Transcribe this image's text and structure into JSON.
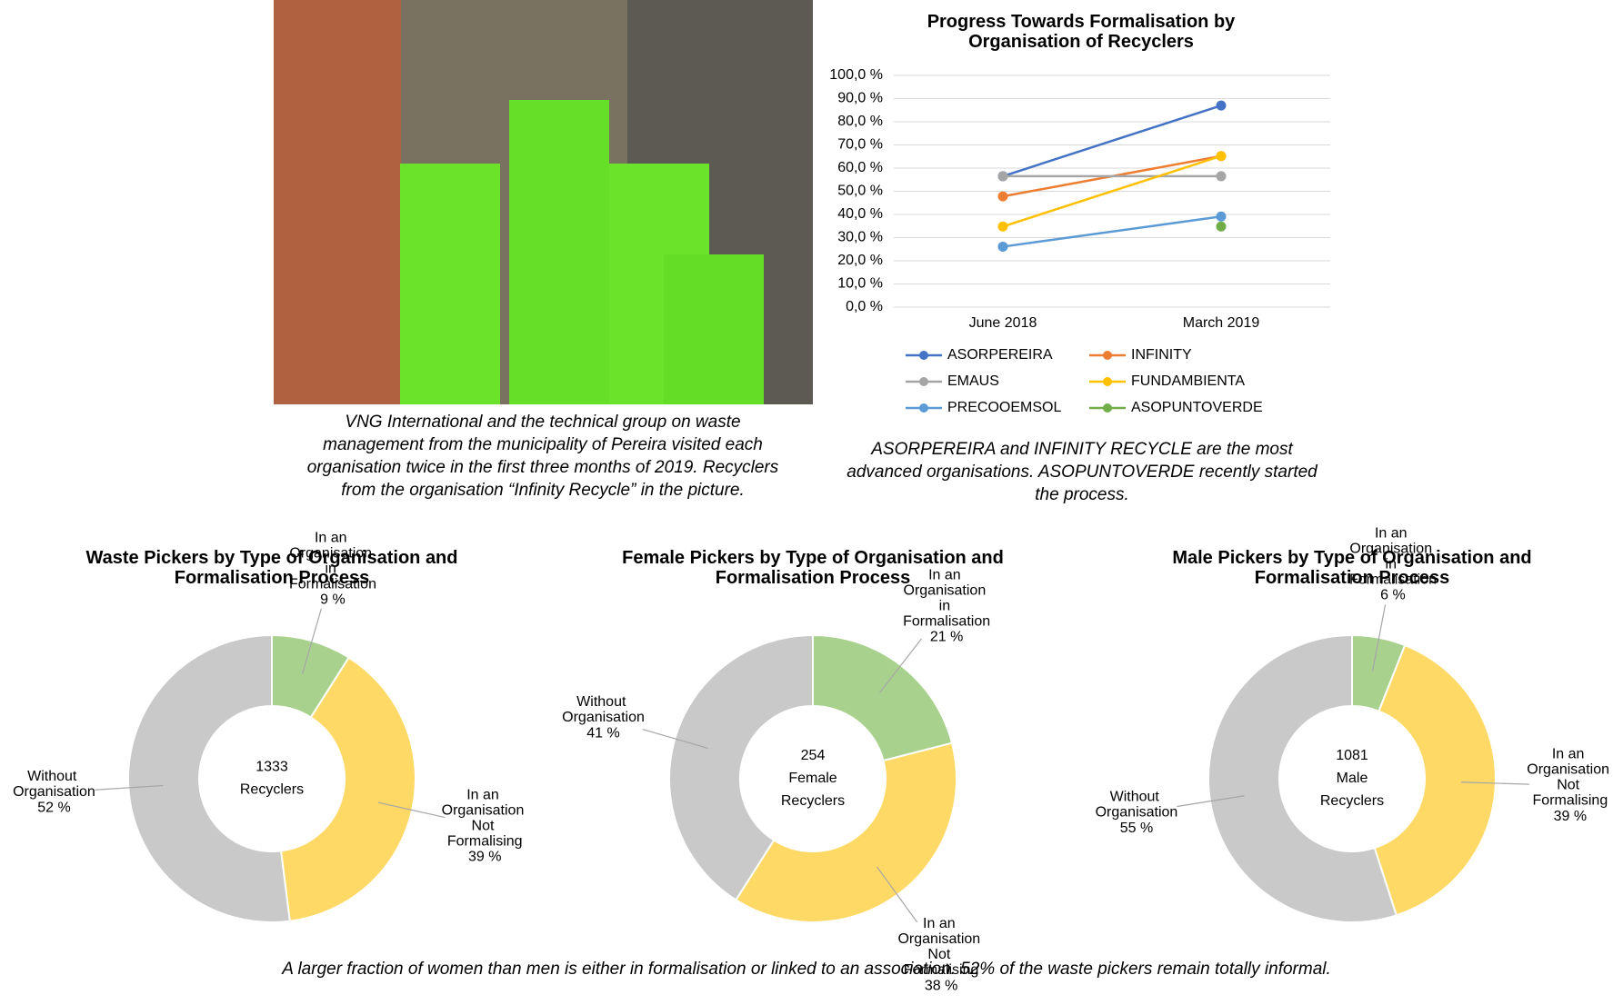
{
  "photo_caption": "VNG International and the technical group on waste management from the municipality of Pereira visited each organisation twice in the first three months of 2019. Recyclers from the organisation “Infinity Recycle” in the picture.",
  "line_caption": "ASORPEREIRA and INFINITY RECYCLE are the most advanced organisations. ASOPUNTOVERDE recently started the process.",
  "footer_caption": "A larger fraction of women than men is either in formalisation or linked to an association. 52% of the waste pickers remain totally informal.",
  "chart_data": [
    {
      "type": "line",
      "title": "Progress Towards Formalisation by Organisation of Recyclers",
      "categories": [
        "June 2018",
        "March 2019"
      ],
      "ylim": [
        0,
        100
      ],
      "yticks": [
        {
          "value": 0,
          "label": "0,0 %"
        },
        {
          "value": 10,
          "label": "10,0 %"
        },
        {
          "value": 20,
          "label": "20,0 %"
        },
        {
          "value": 30,
          "label": "30,0 %"
        },
        {
          "value": 40,
          "label": "40,0 %"
        },
        {
          "value": 50,
          "label": "50,0 %"
        },
        {
          "value": 60,
          "label": "60,0 %"
        },
        {
          "value": 70,
          "label": "70,0 %"
        },
        {
          "value": 80,
          "label": "80,0 %"
        },
        {
          "value": 90,
          "label": "90,0 %"
        },
        {
          "value": 100,
          "label": "100,0 %"
        }
      ],
      "grid": true,
      "series": [
        {
          "name": "ASORPEREIRA",
          "color": "#4472c4",
          "values": [
            56.5,
            87
          ]
        },
        {
          "name": "INFINITY",
          "color": "#ed7d31",
          "values": [
            47.8,
            65.2
          ]
        },
        {
          "name": "EMAUS",
          "color": "#a5a5a5",
          "values": [
            56.5,
            56.5
          ]
        },
        {
          "name": "FUNDAMBIENTA",
          "color": "#ffc000",
          "values": [
            34.8,
            65.2
          ]
        },
        {
          "name": "PRECOOEMSOL",
          "color": "#5b9bd5",
          "values": [
            26.1,
            39.1
          ]
        },
        {
          "name": "ASOPUNTOVERDE",
          "color": "#70ad47",
          "values": [
            null,
            34.8
          ]
        }
      ]
    },
    {
      "type": "donut",
      "title": "Waste Pickers by Type of Organisation and Formalisation Process",
      "center_label": [
        "1333",
        "Recyclers"
      ],
      "categories": [
        "In an Organisation in Formalisation",
        "In an Organisation Not Formalising",
        "Without Organisation"
      ],
      "values": [
        9,
        39,
        52
      ],
      "value_labels": [
        "9 %",
        "39 %",
        "52 %"
      ],
      "colors": [
        "#a9d18e",
        "#ffd966",
        "#c9c9c9"
      ]
    },
    {
      "type": "donut",
      "title": "Female Pickers by Type of Organisation and Formalisation Process",
      "center_label": [
        "254",
        "Female",
        "Recyclers"
      ],
      "categories": [
        "In an Organisation in Formalisation",
        "In an Organisation Not Formalising",
        "Without Organisation"
      ],
      "values": [
        21,
        38,
        41
      ],
      "value_labels": [
        "21 %",
        "38 %",
        "41 %"
      ],
      "colors": [
        "#a9d18e",
        "#ffd966",
        "#c9c9c9"
      ]
    },
    {
      "type": "donut",
      "title": "Male Pickers by Type of Organisation and Formalisation Process",
      "center_label": [
        "1081",
        "Male",
        "Recyclers"
      ],
      "categories": [
        "In an Organisation in Formalisation",
        "In an Organisation Not Formalising",
        "Without Organisation"
      ],
      "values": [
        6,
        39,
        55
      ],
      "value_labels": [
        "6 %",
        "39 %",
        "55 %"
      ],
      "colors": [
        "#a9d18e",
        "#ffd966",
        "#c9c9c9"
      ]
    }
  ]
}
